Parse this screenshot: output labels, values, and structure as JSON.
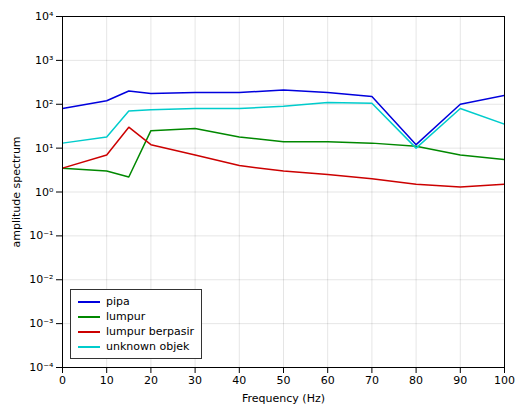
{
  "chart_data": {
    "type": "line",
    "x_label": "Frequency (Hz)",
    "y_label": "amplitude spectrum",
    "x": [
      0,
      10,
      15,
      20,
      30,
      40,
      50,
      60,
      70,
      80,
      90,
      100
    ],
    "series": [
      {
        "name": "pipa",
        "color": "#0000dd",
        "values": [
          80,
          120,
          200,
          175,
          185,
          185,
          210,
          185,
          150,
          12,
          100,
          160
        ]
      },
      {
        "name": "lumpur",
        "color": "#008800",
        "values": [
          3.5,
          3.0,
          2.2,
          25,
          28,
          18,
          14,
          14,
          13,
          11,
          7,
          5.5
        ]
      },
      {
        "name": "lumpur berpasir",
        "color": "#cc0000",
        "values": [
          3.5,
          7,
          30,
          12,
          7,
          4,
          3,
          2.5,
          2,
          1.5,
          1.3,
          1.5
        ]
      },
      {
        "name": "unknown objek",
        "color": "#00cccc",
        "values": [
          13,
          18,
          70,
          75,
          80,
          80,
          90,
          110,
          105,
          10,
          80,
          35
        ]
      }
    ],
    "xlim": [
      0,
      100
    ],
    "xticks": [
      0,
      10,
      20,
      30,
      40,
      50,
      60,
      70,
      80,
      90,
      100
    ],
    "ylim": [
      0.0001,
      10000
    ],
    "yticks": [
      {
        "value": 0.0001,
        "label": "10⁻⁴"
      },
      {
        "value": 0.001,
        "label": "10⁻³"
      },
      {
        "value": 0.01,
        "label": "10⁻²"
      },
      {
        "value": 0.1,
        "label": "10⁻¹"
      },
      {
        "value": 1,
        "label": "10⁰"
      },
      {
        "value": 10,
        "label": "10¹"
      },
      {
        "value": 100,
        "label": "10²"
      },
      {
        "value": 1000,
        "label": "10³"
      },
      {
        "value": 10000,
        "label": "10⁴"
      }
    ],
    "log": "y",
    "grid": true,
    "legend": "lower left"
  }
}
